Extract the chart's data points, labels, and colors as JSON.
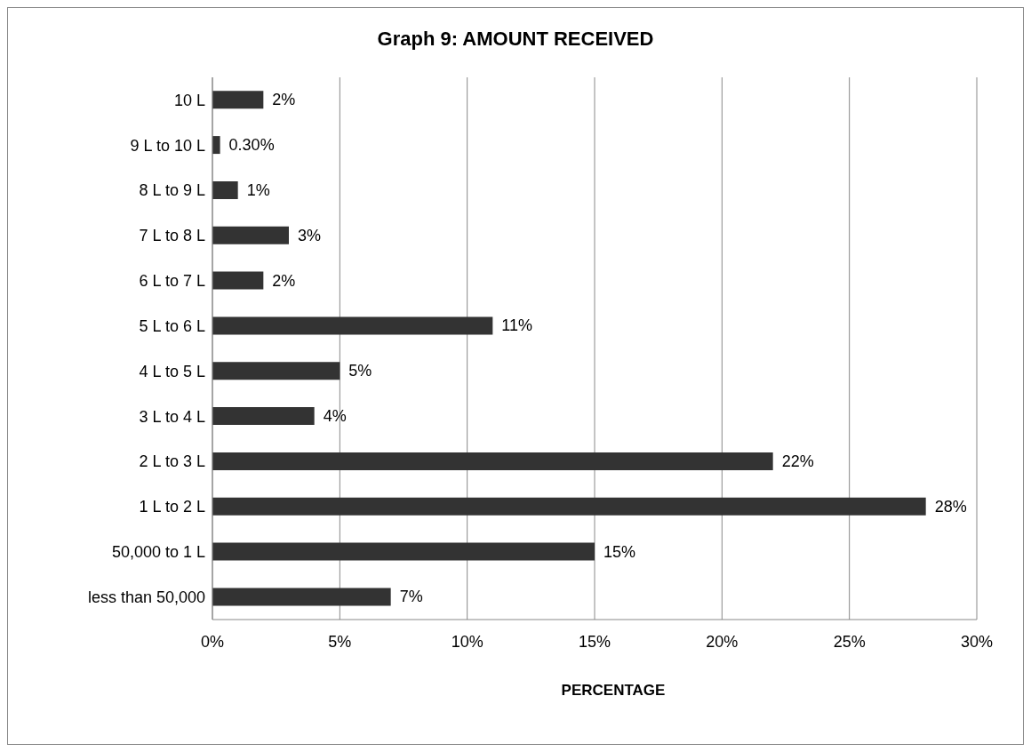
{
  "chart_data": {
    "type": "bar",
    "orientation": "horizontal",
    "title": "Graph 9: AMOUNT RECEIVED",
    "xlabel": "PERCENTAGE",
    "categories": [
      "10 L",
      "9 L to 10 L",
      "8 L to 9 L",
      "7 L to 8 L",
      "6 L to 7 L",
      "5 L to 6 L",
      "4 L to 5 L",
      "3 L to 4 L",
      "2 L to 3 L",
      "1 L to 2 L",
      "50,000 to 1 L",
      "less than 50,000"
    ],
    "values": [
      2,
      0.3,
      1,
      3,
      2,
      11,
      5,
      4,
      22,
      28,
      15,
      7
    ],
    "value_labels": [
      "2%",
      "0.30%",
      "1%",
      "3%",
      "2%",
      "11%",
      "5%",
      "4%",
      "22%",
      "28%",
      "15%",
      "7%"
    ],
    "color": "#333333",
    "xlim": [
      0,
      30
    ],
    "xticks": [
      {
        "value": 0,
        "label": "0%"
      },
      {
        "value": 5,
        "label": "5%"
      },
      {
        "value": 10,
        "label": "10%"
      },
      {
        "value": 15,
        "label": "15%"
      },
      {
        "value": 20,
        "label": "20%"
      },
      {
        "value": 25,
        "label": "25%"
      },
      {
        "value": 30,
        "label": "30%"
      }
    ],
    "grid": "x"
  }
}
